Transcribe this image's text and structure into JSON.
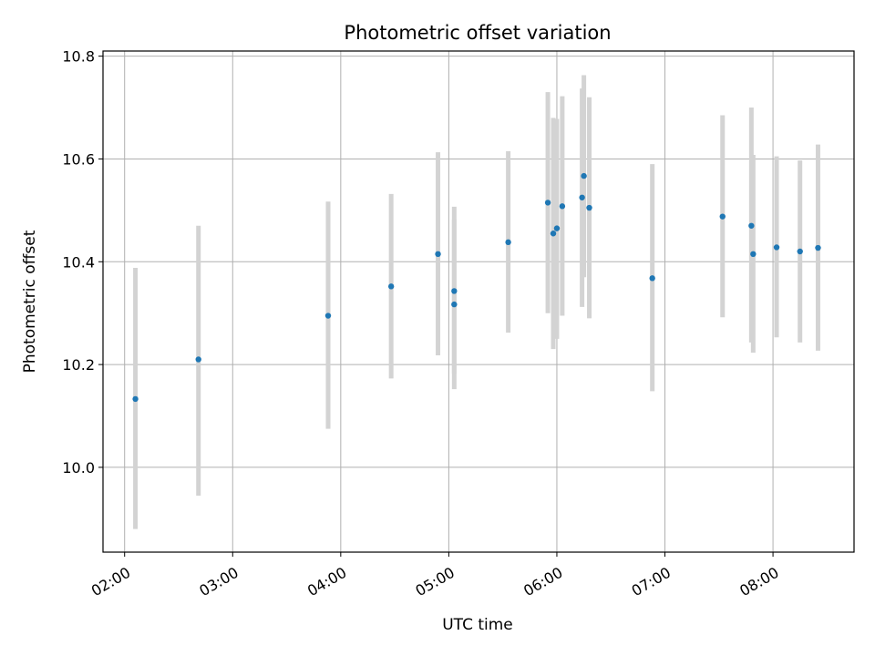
{
  "chart_data": {
    "type": "scatter",
    "title": "Photometric offset variation",
    "xlabel": "UTC time",
    "ylabel": "Photometric offset",
    "x_ticks": [
      "02:00",
      "03:00",
      "04:00",
      "05:00",
      "06:00",
      "07:00",
      "08:00"
    ],
    "y_ticks": [
      "10.0",
      "10.2",
      "10.4",
      "10.6",
      "10.8"
    ],
    "xlim": [
      "01:48",
      "08:45"
    ],
    "ylim": [
      9.835,
      10.81
    ],
    "grid": true,
    "colors": {
      "point": "#1f77b4",
      "errorbar": "#d3d3d3",
      "grid": "#b0b0b0"
    },
    "points": [
      {
        "x": "02:06",
        "y": 10.133,
        "lo": 9.88,
        "hi": 10.388
      },
      {
        "x": "02:41",
        "y": 10.21,
        "lo": 9.945,
        "hi": 10.47
      },
      {
        "x": "03:53",
        "y": 10.295,
        "lo": 10.075,
        "hi": 10.517
      },
      {
        "x": "04:28",
        "y": 10.352,
        "lo": 10.173,
        "hi": 10.532
      },
      {
        "x": "04:54",
        "y": 10.415,
        "lo": 10.218,
        "hi": 10.613
      },
      {
        "x": "05:03",
        "y": 10.343,
        "lo": 10.182,
        "hi": 10.507
      },
      {
        "x": "05:03",
        "y": 10.317,
        "lo": 10.152,
        "hi": 10.482
      },
      {
        "x": "05:33",
        "y": 10.438,
        "lo": 10.262,
        "hi": 10.615
      },
      {
        "x": "05:55",
        "y": 10.515,
        "lo": 10.3,
        "hi": 10.73
      },
      {
        "x": "05:58",
        "y": 10.455,
        "lo": 10.23,
        "hi": 10.68
      },
      {
        "x": "06:00",
        "y": 10.465,
        "lo": 10.25,
        "hi": 10.678
      },
      {
        "x": "06:03",
        "y": 10.508,
        "lo": 10.295,
        "hi": 10.722
      },
      {
        "x": "06:14",
        "y": 10.525,
        "lo": 10.312,
        "hi": 10.737
      },
      {
        "x": "06:15",
        "y": 10.567,
        "lo": 10.37,
        "hi": 10.763
      },
      {
        "x": "06:18",
        "y": 10.505,
        "lo": 10.29,
        "hi": 10.72
      },
      {
        "x": "06:53",
        "y": 10.368,
        "lo": 10.148,
        "hi": 10.59
      },
      {
        "x": "07:32",
        "y": 10.488,
        "lo": 10.292,
        "hi": 10.685
      },
      {
        "x": "07:48",
        "y": 10.47,
        "lo": 10.243,
        "hi": 10.7
      },
      {
        "x": "07:49",
        "y": 10.415,
        "lo": 10.223,
        "hi": 10.608
      },
      {
        "x": "08:02",
        "y": 10.428,
        "lo": 10.253,
        "hi": 10.605
      },
      {
        "x": "08:15",
        "y": 10.42,
        "lo": 10.243,
        "hi": 10.597
      },
      {
        "x": "08:25",
        "y": 10.427,
        "lo": 10.227,
        "hi": 10.628
      }
    ]
  }
}
